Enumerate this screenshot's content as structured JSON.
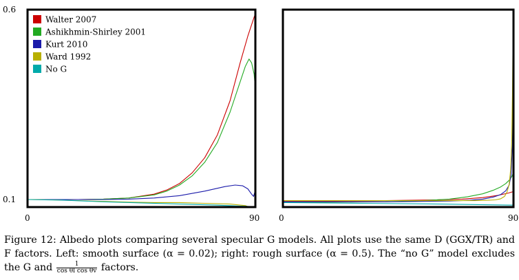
{
  "chart_data": [
    {
      "type": "line",
      "title": "",
      "xlabel": "",
      "ylabel": "",
      "xlim": [
        0,
        90
      ],
      "ylim": [
        0.08,
        0.6
      ],
      "x_tick_labels": [
        "0",
        "90"
      ],
      "y_tick_labels": [
        "0.6",
        "0.1"
      ],
      "y_tick_values": [
        0.6,
        0.1
      ],
      "legend": "top-left",
      "series": [
        {
          "name": "Walter 2007",
          "color": "#cc0000",
          "points": [
            [
              0,
              0.1
            ],
            [
              10,
              0.1
            ],
            [
              20,
              0.1
            ],
            [
              30,
              0.101
            ],
            [
              40,
              0.104
            ],
            [
              50,
              0.114
            ],
            [
              55,
              0.125
            ],
            [
              60,
              0.142
            ],
            [
              65,
              0.17
            ],
            [
              70,
              0.21
            ],
            [
              75,
              0.27
            ],
            [
              80,
              0.36
            ],
            [
              84,
              0.46
            ],
            [
              87,
              0.53
            ],
            [
              89,
              0.57
            ],
            [
              90,
              0.59
            ]
          ]
        },
        {
          "name": "Ashikhmin-Shirley 2001",
          "color": "#22aa22",
          "points": [
            [
              0,
              0.1
            ],
            [
              10,
              0.1
            ],
            [
              20,
              0.1
            ],
            [
              30,
              0.101
            ],
            [
              40,
              0.104
            ],
            [
              50,
              0.112
            ],
            [
              55,
              0.122
            ],
            [
              60,
              0.138
            ],
            [
              65,
              0.162
            ],
            [
              70,
              0.198
            ],
            [
              75,
              0.25
            ],
            [
              80,
              0.33
            ],
            [
              84,
              0.41
            ],
            [
              86,
              0.45
            ],
            [
              87.5,
              0.47
            ],
            [
              88.5,
              0.46
            ],
            [
              89.5,
              0.43
            ],
            [
              90,
              0.39
            ]
          ]
        },
        {
          "name": "Kurt 2010",
          "color": "#1a1aaa",
          "points": [
            [
              0,
              0.1
            ],
            [
              10,
              0.1
            ],
            [
              20,
              0.1
            ],
            [
              30,
              0.1
            ],
            [
              40,
              0.101
            ],
            [
              50,
              0.104
            ],
            [
              60,
              0.11
            ],
            [
              70,
              0.122
            ],
            [
              78,
              0.134
            ],
            [
              82,
              0.138
            ],
            [
              85,
              0.136
            ],
            [
              87,
              0.128
            ],
            [
              88.5,
              0.114
            ],
            [
              89.3,
              0.108
            ],
            [
              90,
              0.125
            ]
          ]
        },
        {
          "name": "Ward 1992",
          "color": "#b8b000",
          "points": [
            [
              0,
              0.1
            ],
            [
              10,
              0.099
            ],
            [
              20,
              0.097
            ],
            [
              30,
              0.095
            ],
            [
              40,
              0.093
            ],
            [
              50,
              0.092
            ],
            [
              60,
              0.092
            ],
            [
              70,
              0.09
            ],
            [
              80,
              0.088
            ],
            [
              86,
              0.084
            ],
            [
              88,
              0.079
            ],
            [
              89,
              0.077
            ],
            [
              90,
              0.083
            ]
          ]
        },
        {
          "name": "No G",
          "color": "#00aaaa",
          "points": [
            [
              0,
              0.1
            ],
            [
              15,
              0.098
            ],
            [
              30,
              0.094
            ],
            [
              45,
              0.091
            ],
            [
              60,
              0.088
            ],
            [
              75,
              0.085
            ],
            [
              90,
              0.081
            ]
          ]
        }
      ]
    },
    {
      "type": "line",
      "title": "",
      "xlabel": "",
      "ylabel": "",
      "xlim": [
        0,
        90
      ],
      "ylim": [
        0.08,
        0.6
      ],
      "x_tick_labels": [
        "0",
        "90"
      ],
      "y_tick_labels": [],
      "legend": "none",
      "series": [
        {
          "name": "Walter 2007",
          "color": "#cc0000",
          "points": [
            [
              0,
              0.096
            ],
            [
              20,
              0.096
            ],
            [
              40,
              0.097
            ],
            [
              60,
              0.099
            ],
            [
              70,
              0.101
            ],
            [
              78,
              0.105
            ],
            [
              84,
              0.111
            ],
            [
              88,
              0.117
            ],
            [
              90,
              0.121
            ]
          ]
        },
        {
          "name": "Ashikhmin-Shirley 2001",
          "color": "#22aa22",
          "points": [
            [
              0,
              0.093
            ],
            [
              20,
              0.093
            ],
            [
              40,
              0.094
            ],
            [
              55,
              0.097
            ],
            [
              65,
              0.101
            ],
            [
              72,
              0.107
            ],
            [
              78,
              0.115
            ],
            [
              82,
              0.124
            ],
            [
              85,
              0.133
            ],
            [
              87,
              0.142
            ],
            [
              88.5,
              0.152
            ],
            [
              89.5,
              0.162
            ],
            [
              90,
              0.172
            ]
          ]
        },
        {
          "name": "Kurt 2010",
          "color": "#1a1aaa",
          "points": [
            [
              0,
              0.094
            ],
            [
              20,
              0.094
            ],
            [
              40,
              0.094
            ],
            [
              55,
              0.095
            ],
            [
              65,
              0.096
            ],
            [
              73,
              0.098
            ],
            [
              78,
              0.101
            ],
            [
              82,
              0.106
            ],
            [
              85,
              0.113
            ],
            [
              87,
              0.123
            ],
            [
              88.3,
              0.138
            ],
            [
              89.1,
              0.165
            ],
            [
              89.6,
              0.25
            ],
            [
              89.85,
              0.45
            ],
            [
              90,
              0.59
            ]
          ]
        },
        {
          "name": "Ward 1992",
          "color": "#b8b000",
          "points": [
            [
              0,
              0.097
            ],
            [
              30,
              0.097
            ],
            [
              60,
              0.097
            ],
            [
              75,
              0.097
            ],
            [
              80,
              0.098
            ],
            [
              83,
              0.099
            ],
            [
              85,
              0.102
            ],
            [
              86.5,
              0.108
            ],
            [
              87.5,
              0.12
            ],
            [
              88.3,
              0.14
            ],
            [
              88.9,
              0.18
            ],
            [
              89.3,
              0.25
            ],
            [
              89.6,
              0.38
            ],
            [
              89.85,
              0.55
            ],
            [
              90,
              0.6
            ]
          ]
        },
        {
          "name": "No G",
          "color": "#00aaaa",
          "points": [
            [
              0,
              0.092
            ],
            [
              30,
              0.09
            ],
            [
              60,
              0.088
            ],
            [
              90,
              0.085
            ]
          ]
        }
      ]
    }
  ],
  "caption": {
    "label": "Figure 12:",
    "text_1": "Albedo plots comparing several specular G models. All plots use the same D (GGX/TR) and F factors. Left: smooth surface (α = 0.02); right: rough surface (α = 0.5). The “no G” model excludes the G and",
    "frac_num": "1",
    "frac_den": "cos θl cos θv",
    "text_2": "factors."
  }
}
